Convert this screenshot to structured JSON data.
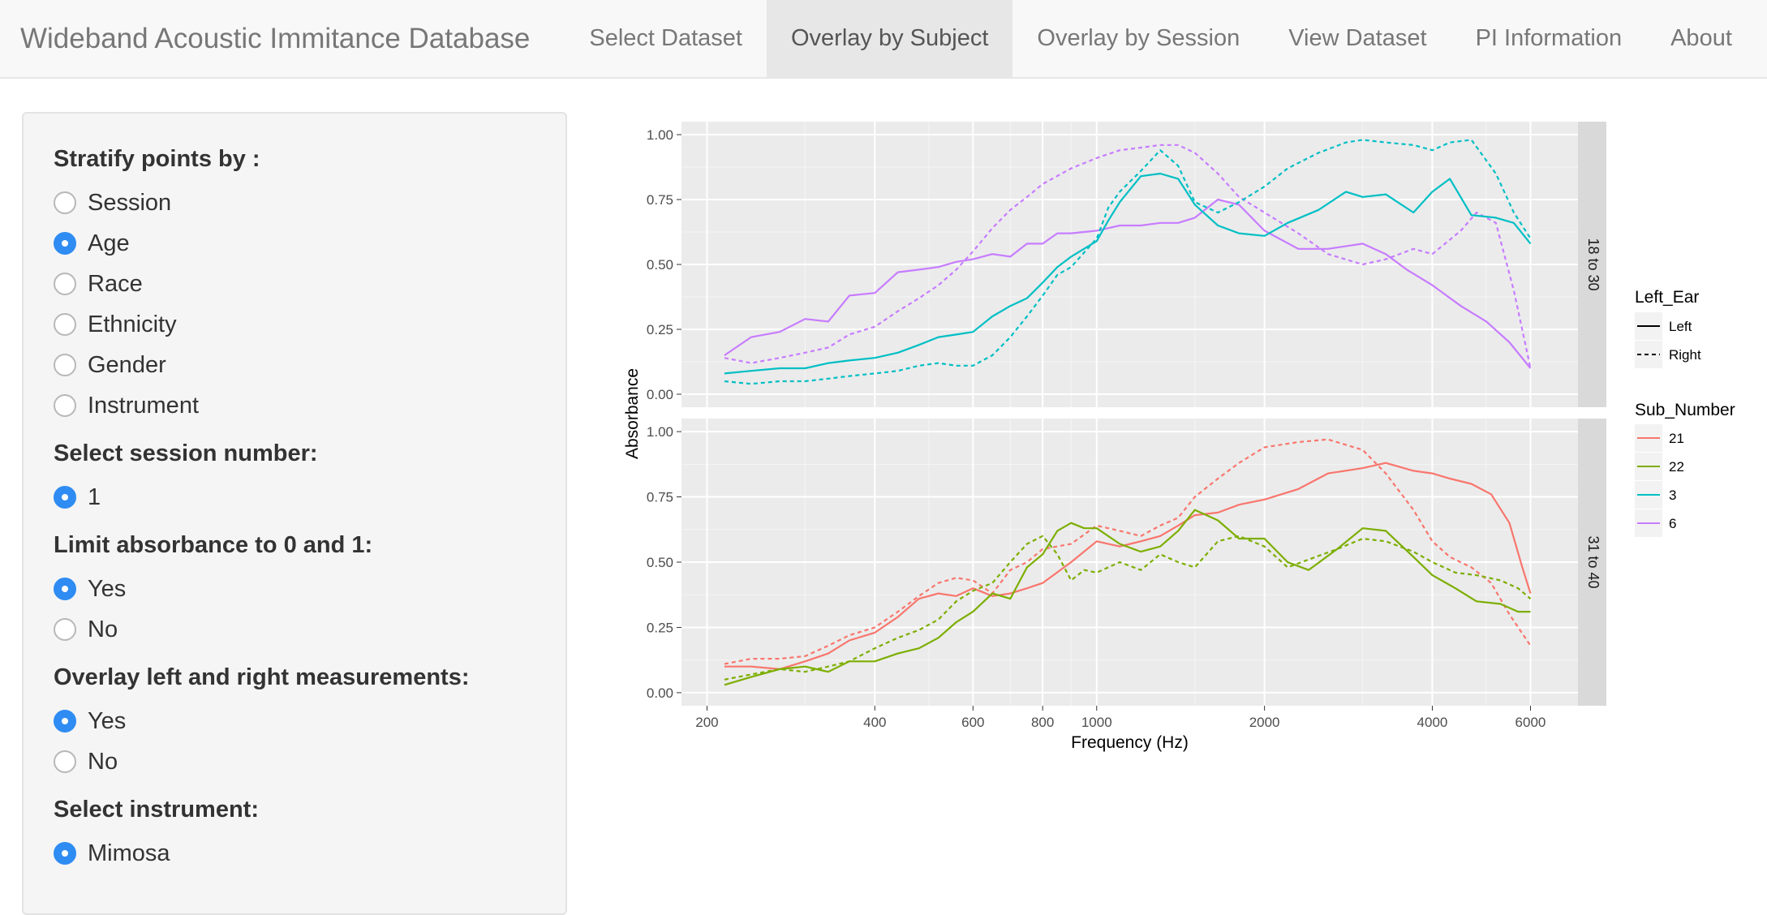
{
  "app": {
    "brand": "Wideband Acoustic Immitance Database",
    "nav": [
      {
        "label": "Select Dataset",
        "active": false
      },
      {
        "label": "Overlay by Subject",
        "active": true
      },
      {
        "label": "Overlay by Session",
        "active": false
      },
      {
        "label": "View Dataset",
        "active": false
      },
      {
        "label": "PI Information",
        "active": false
      },
      {
        "label": "About",
        "active": false
      }
    ]
  },
  "sidebar": {
    "stratify": {
      "label": "Stratify points by :",
      "options": [
        "Session",
        "Age",
        "Race",
        "Ethnicity",
        "Gender",
        "Instrument"
      ],
      "selected": "Age"
    },
    "session": {
      "label": "Select session number:",
      "options": [
        "1"
      ],
      "selected": "1"
    },
    "limit": {
      "label": "Limit absorbance to 0 and 1:",
      "options": [
        "Yes",
        "No"
      ],
      "selected": "Yes"
    },
    "overlay": {
      "label": "Overlay left and right measurements:",
      "options": [
        "Yes",
        "No"
      ],
      "selected": "Yes"
    },
    "instrument": {
      "label": "Select instrument:",
      "options": [
        "Mimosa"
      ],
      "selected": "Mimosa"
    }
  },
  "chart_data": {
    "type": "line",
    "xlabel": "Frequency (Hz)",
    "ylabel": "Absorbance",
    "x_scale": "log",
    "xlim": [
      180,
      7300
    ],
    "ylim": [
      -0.05,
      1.05
    ],
    "x_ticks": [
      200,
      400,
      600,
      800,
      1000,
      2000,
      4000,
      6000
    ],
    "y_ticks": [
      "0.00",
      "0.25",
      "0.50",
      "0.75",
      "1.00"
    ],
    "background": "#ebebeb",
    "grid": true,
    "legend_position": "right",
    "legend_left_ear": {
      "title": "Left_Ear",
      "items": [
        {
          "label": "Left",
          "dash": "solid"
        },
        {
          "label": "Right",
          "dash": "dashed"
        }
      ]
    },
    "legend_subject": {
      "title": "Sub_Number",
      "items": [
        {
          "label": "21",
          "color": "#f8766d"
        },
        {
          "label": "22",
          "color": "#7cae00"
        },
        {
          "label": "3",
          "color": "#00bfc4"
        },
        {
          "label": "6",
          "color": "#c77cff"
        }
      ]
    },
    "panels": [
      {
        "strip": "18 to 30",
        "series": [
          {
            "subject": "6",
            "ear": "Left",
            "color": "#c77cff",
            "dash": "solid",
            "x": [
              215,
              240,
              270,
              300,
              330,
              360,
              400,
              440,
              480,
              520,
              560,
              600,
              650,
              700,
              750,
              800,
              850,
              900,
              1000,
              1100,
              1200,
              1300,
              1400,
              1500,
              1650,
              1800,
              2000,
              2300,
              2600,
              3000,
              3300,
              3600,
              4000,
              4500,
              5000,
              5500,
              6000
            ],
            "y": [
              0.15,
              0.22,
              0.24,
              0.29,
              0.28,
              0.38,
              0.39,
              0.47,
              0.48,
              0.49,
              0.51,
              0.52,
              0.54,
              0.53,
              0.58,
              0.58,
              0.62,
              0.62,
              0.63,
              0.65,
              0.65,
              0.66,
              0.66,
              0.68,
              0.75,
              0.73,
              0.63,
              0.56,
              0.56,
              0.58,
              0.54,
              0.48,
              0.42,
              0.34,
              0.28,
              0.2,
              0.1
            ]
          },
          {
            "subject": "6",
            "ear": "Right",
            "color": "#c77cff",
            "dash": "dashed",
            "x": [
              215,
              240,
              270,
              300,
              330,
              360,
              400,
              440,
              480,
              520,
              560,
              600,
              650,
              700,
              750,
              800,
              900,
              1000,
              1100,
              1200,
              1300,
              1400,
              1500,
              1650,
              1800,
              2000,
              2300,
              2600,
              3000,
              3300,
              3700,
              4000,
              4500,
              4800,
              5200,
              5600,
              6000
            ],
            "y": [
              0.14,
              0.12,
              0.14,
              0.16,
              0.18,
              0.23,
              0.26,
              0.32,
              0.37,
              0.42,
              0.48,
              0.55,
              0.64,
              0.71,
              0.76,
              0.81,
              0.87,
              0.91,
              0.94,
              0.95,
              0.96,
              0.96,
              0.93,
              0.85,
              0.76,
              0.7,
              0.62,
              0.54,
              0.5,
              0.52,
              0.56,
              0.54,
              0.63,
              0.7,
              0.66,
              0.4,
              0.1
            ]
          },
          {
            "subject": "3",
            "ear": "Left",
            "color": "#00bfc4",
            "dash": "solid",
            "x": [
              215,
              240,
              270,
              300,
              330,
              360,
              400,
              440,
              480,
              520,
              560,
              600,
              650,
              700,
              750,
              800,
              850,
              900,
              1000,
              1050,
              1100,
              1200,
              1300,
              1400,
              1500,
              1650,
              1800,
              2000,
              2200,
              2500,
              2800,
              3000,
              3300,
              3700,
              4000,
              4300,
              4700,
              5200,
              5600,
              6000
            ],
            "y": [
              0.08,
              0.09,
              0.1,
              0.1,
              0.12,
              0.13,
              0.14,
              0.16,
              0.19,
              0.22,
              0.23,
              0.24,
              0.3,
              0.34,
              0.37,
              0.43,
              0.49,
              0.53,
              0.59,
              0.67,
              0.74,
              0.84,
              0.85,
              0.83,
              0.73,
              0.65,
              0.62,
              0.61,
              0.66,
              0.71,
              0.78,
              0.76,
              0.77,
              0.7,
              0.78,
              0.83,
              0.69,
              0.68,
              0.66,
              0.58
            ]
          },
          {
            "subject": "3",
            "ear": "Right",
            "color": "#00bfc4",
            "dash": "dashed",
            "x": [
              215,
              240,
              270,
              300,
              330,
              360,
              400,
              440,
              480,
              520,
              560,
              600,
              650,
              700,
              750,
              800,
              850,
              900,
              1000,
              1050,
              1100,
              1200,
              1300,
              1400,
              1500,
              1650,
              1800,
              2000,
              2200,
              2500,
              2800,
              3000,
              3300,
              3700,
              4000,
              4300,
              4700,
              5200,
              5600,
              6000
            ],
            "y": [
              0.05,
              0.04,
              0.05,
              0.05,
              0.06,
              0.07,
              0.08,
              0.09,
              0.11,
              0.12,
              0.11,
              0.11,
              0.15,
              0.22,
              0.3,
              0.38,
              0.46,
              0.49,
              0.6,
              0.72,
              0.78,
              0.86,
              0.94,
              0.88,
              0.74,
              0.7,
              0.74,
              0.8,
              0.87,
              0.93,
              0.97,
              0.98,
              0.97,
              0.96,
              0.94,
              0.97,
              0.98,
              0.85,
              0.7,
              0.6
            ]
          }
        ]
      },
      {
        "strip": "31 to 40",
        "series": [
          {
            "subject": "21",
            "ear": "Left",
            "color": "#f8766d",
            "dash": "solid",
            "x": [
              215,
              240,
              270,
              300,
              330,
              360,
              400,
              440,
              480,
              520,
              560,
              600,
              650,
              700,
              750,
              800,
              900,
              1000,
              1100,
              1200,
              1300,
              1400,
              1500,
              1650,
              1800,
              2000,
              2300,
              2600,
              3000,
              3300,
              3700,
              4000,
              4300,
              4700,
              5100,
              5500,
              5800,
              6000
            ],
            "y": [
              0.1,
              0.1,
              0.09,
              0.12,
              0.15,
              0.2,
              0.23,
              0.29,
              0.36,
              0.38,
              0.37,
              0.4,
              0.37,
              0.38,
              0.4,
              0.42,
              0.5,
              0.58,
              0.56,
              0.58,
              0.6,
              0.64,
              0.68,
              0.69,
              0.72,
              0.74,
              0.78,
              0.84,
              0.86,
              0.88,
              0.85,
              0.84,
              0.82,
              0.8,
              0.76,
              0.65,
              0.48,
              0.38
            ]
          },
          {
            "subject": "21",
            "ear": "Right",
            "color": "#f8766d",
            "dash": "dashed",
            "x": [
              215,
              240,
              270,
              300,
              330,
              360,
              400,
              440,
              480,
              520,
              560,
              600,
              650,
              700,
              750,
              800,
              900,
              1000,
              1100,
              1200,
              1300,
              1400,
              1500,
              1650,
              1800,
              2000,
              2300,
              2600,
              3000,
              3300,
              3700,
              4000,
              4300,
              4700,
              5100,
              5500,
              6000
            ],
            "y": [
              0.11,
              0.13,
              0.13,
              0.14,
              0.18,
              0.22,
              0.25,
              0.31,
              0.37,
              0.42,
              0.44,
              0.43,
              0.38,
              0.47,
              0.5,
              0.55,
              0.57,
              0.64,
              0.62,
              0.6,
              0.64,
              0.67,
              0.75,
              0.82,
              0.88,
              0.94,
              0.96,
              0.97,
              0.93,
              0.84,
              0.7,
              0.58,
              0.52,
              0.48,
              0.42,
              0.3,
              0.18
            ]
          },
          {
            "subject": "22",
            "ear": "Left",
            "color": "#7cae00",
            "dash": "solid",
            "x": [
              215,
              240,
              270,
              300,
              330,
              360,
              400,
              440,
              480,
              520,
              560,
              600,
              650,
              700,
              750,
              800,
              850,
              900,
              950,
              1000,
              1100,
              1200,
              1300,
              1400,
              1500,
              1650,
              1800,
              2000,
              2200,
              2400,
              2700,
              3000,
              3300,
              3700,
              4000,
              4400,
              4800,
              5300,
              5700,
              6000
            ],
            "y": [
              0.03,
              0.06,
              0.09,
              0.1,
              0.08,
              0.12,
              0.12,
              0.15,
              0.17,
              0.21,
              0.27,
              0.31,
              0.38,
              0.36,
              0.48,
              0.53,
              0.62,
              0.65,
              0.63,
              0.63,
              0.57,
              0.54,
              0.56,
              0.62,
              0.7,
              0.66,
              0.59,
              0.59,
              0.5,
              0.47,
              0.55,
              0.63,
              0.62,
              0.52,
              0.45,
              0.4,
              0.35,
              0.34,
              0.31,
              0.31
            ]
          },
          {
            "subject": "22",
            "ear": "Right",
            "color": "#7cae00",
            "dash": "dashed",
            "x": [
              215,
              240,
              270,
              300,
              330,
              360,
              400,
              440,
              480,
              520,
              560,
              600,
              650,
              700,
              750,
              800,
              850,
              900,
              950,
              1000,
              1100,
              1200,
              1300,
              1400,
              1500,
              1650,
              1800,
              2000,
              2200,
              2400,
              2700,
              3000,
              3300,
              3700,
              4000,
              4400,
              4800,
              5300,
              5700,
              6000
            ],
            "y": [
              0.05,
              0.07,
              0.09,
              0.08,
              0.1,
              0.12,
              0.17,
              0.21,
              0.24,
              0.28,
              0.35,
              0.39,
              0.42,
              0.5,
              0.57,
              0.6,
              0.53,
              0.43,
              0.47,
              0.46,
              0.5,
              0.47,
              0.53,
              0.5,
              0.48,
              0.58,
              0.6,
              0.56,
              0.48,
              0.51,
              0.55,
              0.59,
              0.58,
              0.54,
              0.5,
              0.46,
              0.45,
              0.43,
              0.4,
              0.36
            ]
          }
        ]
      }
    ]
  }
}
